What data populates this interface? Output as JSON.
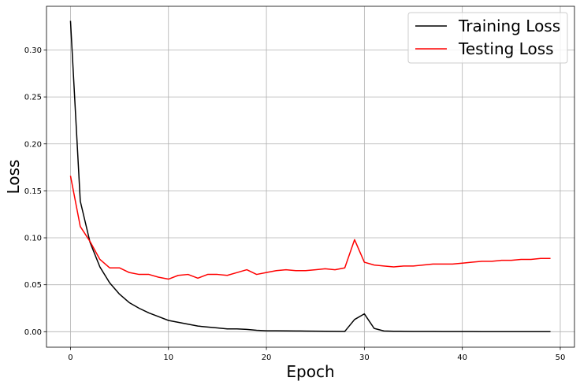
{
  "chart_data": {
    "type": "line",
    "title": "",
    "xlabel": "Epoch",
    "ylabel": "Loss",
    "xlim": [
      -2.45,
      51.45
    ],
    "ylim": [
      -0.0165,
      0.3465
    ],
    "xticks": [
      0,
      10,
      20,
      30,
      40,
      50
    ],
    "xtick_labels": [
      "0",
      "10",
      "20",
      "30",
      "40",
      "50"
    ],
    "yticks": [
      0.0,
      0.05,
      0.1,
      0.15,
      0.2,
      0.25,
      0.3
    ],
    "ytick_labels": [
      "0.00",
      "0.05",
      "0.10",
      "0.15",
      "0.20",
      "0.25",
      "0.30"
    ],
    "grid": true,
    "legend": "top-right",
    "x": [
      0,
      1,
      2,
      3,
      4,
      5,
      6,
      7,
      8,
      9,
      10,
      11,
      12,
      13,
      14,
      15,
      16,
      17,
      18,
      19,
      20,
      21,
      22,
      23,
      24,
      25,
      26,
      27,
      28,
      29,
      30,
      31,
      32,
      33,
      34,
      35,
      36,
      37,
      38,
      39,
      40,
      41,
      42,
      43,
      44,
      45,
      46,
      47,
      48,
      49
    ],
    "series": [
      {
        "name": "Training Loss",
        "color": "#000000",
        "values": [
          0.331,
          0.139,
          0.095,
          0.069,
          0.052,
          0.04,
          0.031,
          0.025,
          0.02,
          0.016,
          0.012,
          0.01,
          0.008,
          0.006,
          0.005,
          0.004,
          0.003,
          0.003,
          0.0025,
          0.0015,
          0.001,
          0.001,
          0.0009,
          0.0008,
          0.0007,
          0.0006,
          0.0005,
          0.0004,
          0.0003,
          0.013,
          0.019,
          0.0035,
          0.0008,
          0.0005,
          0.0004,
          0.0003,
          0.0003,
          0.0003,
          0.0002,
          0.0002,
          0.0002,
          0.0002,
          0.0001,
          0.0001,
          0.0001,
          0.0001,
          0.0001,
          0.0001,
          0.0001,
          0.0001
        ]
      },
      {
        "name": "Testing Loss",
        "color": "#ff0000",
        "values": [
          0.166,
          0.112,
          0.096,
          0.077,
          0.068,
          0.068,
          0.063,
          0.061,
          0.061,
          0.058,
          0.056,
          0.06,
          0.061,
          0.057,
          0.061,
          0.061,
          0.06,
          0.063,
          0.066,
          0.061,
          0.063,
          0.065,
          0.066,
          0.065,
          0.065,
          0.066,
          0.067,
          0.066,
          0.068,
          0.098,
          0.074,
          0.071,
          0.07,
          0.069,
          0.07,
          0.07,
          0.071,
          0.072,
          0.072,
          0.072,
          0.073,
          0.074,
          0.075,
          0.075,
          0.076,
          0.076,
          0.077,
          0.077,
          0.078,
          0.078
        ]
      }
    ]
  }
}
